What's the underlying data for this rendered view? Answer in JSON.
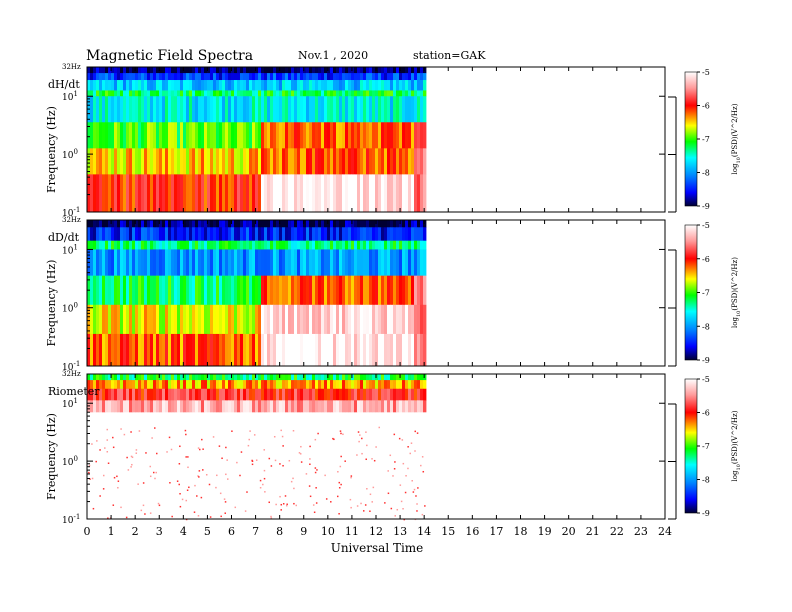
{
  "header": {
    "title": "Magnetic  Field  Spectra",
    "date": "Nov.1  , 2020",
    "station": "station=GAK"
  },
  "chart_data": {
    "type": "heatmap",
    "xlabel": "Universal Time",
    "x_ticks": [
      "0",
      "1",
      "2",
      "3",
      "4",
      "5",
      "6",
      "7",
      "8",
      "9",
      "10",
      "11",
      "12",
      "13",
      "14",
      "15",
      "16",
      "17",
      "18",
      "19",
      "20",
      "21",
      "22",
      "23",
      "24"
    ],
    "xlim": [
      0,
      24
    ],
    "data_end_hour": 14,
    "colorbar": {
      "label": "log10(PSD)(V^2/Hz)",
      "label_text": "log",
      "label_sub": "10",
      "label_rest": "(PSD)(V^2/Hz)",
      "ticks": [
        "-5",
        "-6",
        "-7",
        "-8",
        "-9"
      ],
      "range": [
        -9,
        -5
      ]
    },
    "panels": [
      {
        "name": "dH/dt",
        "ylabel": "Frequency  (Hz)",
        "top_label": "32Hz",
        "y_ticks": [
          {
            "base": "10",
            "exp": "1"
          },
          {
            "base": "10",
            "exp": "0"
          },
          {
            "base": "10",
            "exp": "-1"
          }
        ],
        "yscale": "log",
        "bands": [
          {
            "from_log": 1.505,
            "to_log": 1.4,
            "value": -8.9
          },
          {
            "from_log": 1.4,
            "to_log": 1.28,
            "value": -8.4
          },
          {
            "from_log": 1.28,
            "to_log": 1.1,
            "value": -7.8
          },
          {
            "from_log": 1.1,
            "to_log": 1.0,
            "value": -7.2
          },
          {
            "from_log": 1.0,
            "to_log": 0.55,
            "value": -7.6
          },
          {
            "from_log": 0.55,
            "to_log": 0.1,
            "value": -7.0
          },
          {
            "from_log": 0.1,
            "to_log": -0.35,
            "value": -6.5
          },
          {
            "from_log": -0.35,
            "to_log": -1.0,
            "value": -6.0
          }
        ],
        "quiet_interval_hours": [
          7.2,
          13.6
        ]
      },
      {
        "name": "dD/dt",
        "ylabel": "Frequency  (Hz)",
        "top_label": "32Hz",
        "y_ticks": [
          {
            "base": "10",
            "exp": "1"
          },
          {
            "base": "10",
            "exp": "0"
          },
          {
            "base": "10",
            "exp": "-1"
          }
        ],
        "yscale": "log",
        "bands": [
          {
            "from_log": 1.505,
            "to_log": 1.38,
            "value": -8.9
          },
          {
            "from_log": 1.38,
            "to_log": 1.15,
            "value": -8.5
          },
          {
            "from_log": 1.15,
            "to_log": 1.0,
            "value": -7.3
          },
          {
            "from_log": 1.0,
            "to_log": 0.55,
            "value": -8.0
          },
          {
            "from_log": 0.55,
            "to_log": 0.05,
            "value": -7.2
          },
          {
            "from_log": 0.05,
            "to_log": -0.45,
            "value": -6.6
          },
          {
            "from_log": -0.45,
            "to_log": -1.0,
            "value": -6.2
          }
        ],
        "quiet_interval_hours": [
          7.2,
          13.6
        ]
      },
      {
        "name": "Riometer",
        "ylabel": "Frequency  (Hz)",
        "top_label": "32Hz",
        "y_ticks": [
          {
            "base": "10",
            "exp": "1"
          },
          {
            "base": "10",
            "exp": "0"
          },
          {
            "base": "10",
            "exp": "-1"
          }
        ],
        "yscale": "log",
        "bands": [
          {
            "from_log": 1.505,
            "to_log": 1.4,
            "value": -7.2
          },
          {
            "from_log": 1.4,
            "to_log": 1.25,
            "value": -6.4
          },
          {
            "from_log": 1.25,
            "to_log": 1.05,
            "value": -5.9
          },
          {
            "from_log": 1.05,
            "to_log": 0.85,
            "value": -5.4
          }
        ],
        "quiet_interval_hours": []
      }
    ]
  }
}
